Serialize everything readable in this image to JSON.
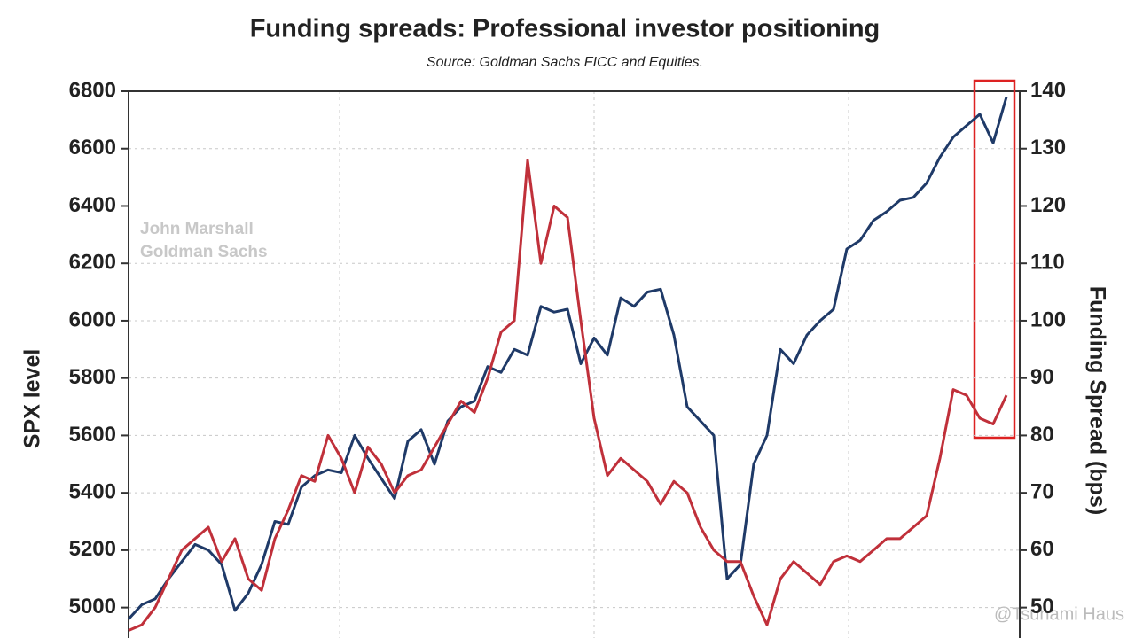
{
  "chart_data": {
    "type": "line",
    "title": "Funding spreads: Professional investor positioning",
    "subtitle": "Source: Goldman Sachs FICC and Equities.",
    "y_label": "SPX level",
    "y2_label": "Funding Spread (bps)",
    "annotations": [
      "John Marshall",
      "Goldman Sachs",
      "@Tsunami Haus"
    ],
    "categories": [
      null,
      null,
      null,
      null,
      null,
      null,
      null,
      null,
      null,
      null,
      null,
      null,
      null,
      null,
      null,
      null,
      null,
      null,
      null,
      null,
      null,
      null,
      null,
      null,
      null,
      null,
      null,
      null,
      null,
      null,
      null,
      null,
      null,
      null,
      null,
      null,
      null,
      null,
      null,
      null,
      null,
      null,
      null,
      null,
      null,
      null,
      null,
      null,
      null,
      null,
      null,
      null,
      null,
      null,
      null,
      null,
      null,
      null,
      null,
      null,
      null,
      null,
      null,
      null,
      null,
      null,
      null
    ],
    "series": [
      {
        "name": "SPX level",
        "color": "#1f3a68",
        "axis": "y",
        "values": [
          4960,
          5010,
          5030,
          5100,
          5160,
          5220,
          5200,
          5150,
          4990,
          5050,
          5150,
          5300,
          5290,
          5420,
          5460,
          5480,
          5470,
          5600,
          5520,
          5450,
          5380,
          5580,
          5620,
          5500,
          5650,
          5700,
          5720,
          5840,
          5820,
          5900,
          5880,
          6050,
          6030,
          6040,
          5850,
          5940,
          5880,
          6080,
          6050,
          6100,
          6110,
          5950,
          5700,
          5650,
          5600,
          5100,
          5150,
          5500,
          5600,
          5900,
          5850,
          5950,
          6000,
          6040,
          6250,
          6280,
          6350,
          6380,
          6420,
          6430,
          6480,
          6570,
          6640,
          6680,
          6720,
          6620,
          6780
        ]
      },
      {
        "name": "Funding Spread (bps)",
        "color": "#c0303a",
        "axis": "y2",
        "values": [
          46,
          47,
          50,
          55,
          60,
          62,
          64,
          58,
          62,
          55,
          53,
          62,
          67,
          73,
          72,
          80,
          76,
          70,
          78,
          75,
          70,
          73,
          74,
          78,
          82,
          86,
          84,
          90,
          98,
          100,
          128,
          110,
          120,
          118,
          100,
          83,
          73,
          76,
          74,
          72,
          68,
          72,
          70,
          64,
          60,
          58,
          58,
          52,
          47,
          55,
          58,
          56,
          54,
          58,
          59,
          58,
          60,
          62,
          62,
          64,
          66,
          76,
          88,
          87,
          83,
          82,
          87
        ]
      }
    ],
    "ylim": [
      4900,
      6800
    ],
    "yticks": [
      5000,
      5200,
      5400,
      5600,
      5800,
      6000,
      6200,
      6400,
      6600,
      6800
    ],
    "y2lim": [
      45,
      140
    ],
    "y2ticks": [
      50,
      60,
      70,
      80,
      90,
      100,
      110,
      120,
      130,
      140
    ],
    "grid": true
  }
}
